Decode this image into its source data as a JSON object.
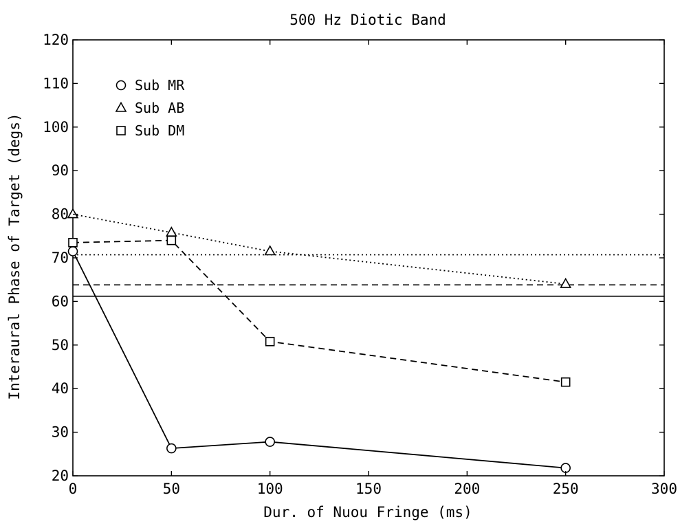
{
  "chart_data": {
    "type": "line",
    "title": "500 Hz Diotic Band",
    "xlabel": "Dur. of Nuou Fringe (ms)",
    "ylabel": "Interaural Phase of Target (degs)",
    "xlim": [
      0,
      300
    ],
    "ylim": [
      20,
      120
    ],
    "xticks": [
      0,
      50,
      100,
      150,
      200,
      250,
      300
    ],
    "yticks": [
      20,
      30,
      40,
      50,
      60,
      70,
      80,
      90,
      100,
      110,
      120
    ],
    "grid": false,
    "legend_position": "top-left",
    "series": [
      {
        "name": "Sub MR",
        "marker": "circle",
        "line_style": "solid",
        "x": [
          0,
          50,
          100,
          250
        ],
        "y": [
          71.5,
          26.3,
          27.8,
          21.8
        ],
        "reference_level": 61.2
      },
      {
        "name": "Sub AB",
        "marker": "triangle",
        "line_style": "dotted",
        "x": [
          0,
          50,
          100,
          250
        ],
        "y": [
          80.0,
          75.8,
          71.5,
          64.0
        ],
        "reference_level": 70.7
      },
      {
        "name": "Sub DM",
        "marker": "square",
        "line_style": "dashed",
        "x": [
          0,
          50,
          100,
          250
        ],
        "y": [
          73.5,
          74.0,
          50.8,
          41.5
        ],
        "reference_level": 63.8
      }
    ]
  }
}
